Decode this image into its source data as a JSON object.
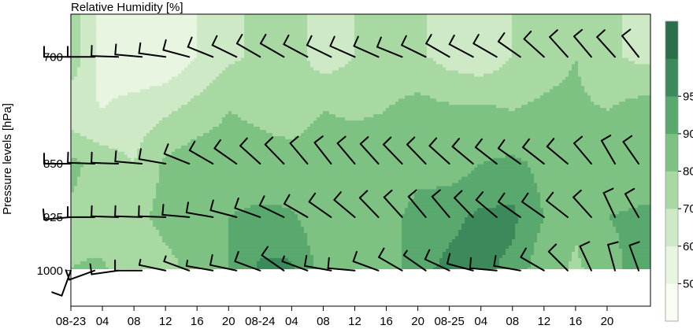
{
  "chart_data": {
    "type": "heatmap",
    "title": "Relative Humidity [%]",
    "xlabel": "",
    "ylabel": "Pressure levels [hPa]",
    "x_tick_labels": [
      "08-23",
      "04",
      "08",
      "12",
      "16",
      "20",
      "08-24",
      "04",
      "08",
      "12",
      "16",
      "20",
      "08-25",
      "04",
      "08",
      "12",
      "16",
      "20"
    ],
    "y_tick_labels": [
      "700",
      "850",
      "925",
      "1000"
    ],
    "pressure_levels": [
      700,
      850,
      925,
      1000
    ],
    "ylim": [
      1050,
      640
    ],
    "colorbar": {
      "labels": [
        "50",
        "60",
        "70",
        "80",
        "90",
        "95"
      ],
      "level_bounds": [
        0,
        50,
        60,
        70,
        80,
        90,
        95,
        100
      ],
      "colors": [
        "#f7fcf5",
        "#e7f5e1",
        "#cde9c6",
        "#a9d9a3",
        "#7ec283",
        "#59a86e",
        "#3c8a5b",
        "#2b6e4a"
      ]
    },
    "x_hours": [
      0,
      4,
      8,
      12,
      16,
      20,
      24,
      28,
      32,
      36,
      40,
      44,
      48,
      52,
      56,
      60,
      64,
      68,
      72
    ],
    "rh": {
      "700": [
        78,
        55,
        50,
        52,
        60,
        68,
        72,
        74,
        65,
        70,
        74,
        72,
        66,
        63,
        70,
        76,
        80,
        72,
        68
      ],
      "775": [
        62,
        60,
        65,
        68,
        74,
        80,
        78,
        74,
        80,
        78,
        80,
        84,
        82,
        82,
        80,
        82,
        82,
        80,
        84
      ],
      "850": [
        83,
        75,
        70,
        82,
        86,
        85,
        84,
        85,
        86,
        88,
        86,
        88,
        87,
        90,
        92,
        88,
        86,
        82,
        82
      ],
      "925": [
        78,
        74,
        76,
        84,
        86,
        90,
        92,
        91,
        86,
        84,
        88,
        92,
        94,
        96,
        96,
        90,
        82,
        90,
        92
      ],
      "1000": [
        80,
        82,
        70,
        76,
        84,
        90,
        96,
        96,
        88,
        84,
        86,
        94,
        96,
        96,
        94,
        86,
        78,
        86,
        94
      ]
    },
    "wind_barb_times": [
      0,
      3,
      6,
      9,
      12,
      15,
      18,
      21,
      24,
      27,
      30,
      33,
      36,
      39,
      42,
      45,
      48,
      51,
      54,
      57,
      60,
      63,
      66,
      69,
      72
    ],
    "wind_direction_deg": {
      "700": [
        270,
        270,
        272,
        275,
        278,
        285,
        292,
        296,
        300,
        300,
        298,
        296,
        294,
        294,
        292,
        296,
        300,
        298,
        300,
        305,
        312,
        318,
        320,
        318,
        322
      ],
      "850": [
        270,
        272,
        272,
        275,
        280,
        292,
        300,
        305,
        312,
        316,
        320,
        322,
        320,
        318,
        316,
        316,
        312,
        310,
        308,
        305,
        308,
        310,
        320,
        330,
        325
      ],
      "925": [
        265,
        270,
        272,
        272,
        272,
        275,
        280,
        285,
        290,
        296,
        300,
        305,
        310,
        316,
        318,
        320,
        320,
        316,
        310,
        305,
        305,
        308,
        318,
        335,
        330
      ],
      "1000": [
        200,
        250,
        262,
        270,
        282,
        290,
        280,
        282,
        290,
        305,
        290,
        280,
        275,
        290,
        300,
        305,
        295,
        285,
        275,
        280,
        300,
        315,
        335,
        345,
        340
      ]
    },
    "wind_speed_kt": {
      "700": [
        10,
        10,
        10,
        10,
        10,
        10,
        10,
        10,
        10,
        10,
        10,
        10,
        10,
        10,
        10,
        10,
        10,
        10,
        10,
        10,
        10,
        10,
        10,
        10,
        10
      ],
      "850": [
        10,
        10,
        10,
        10,
        10,
        10,
        10,
        10,
        10,
        10,
        10,
        10,
        10,
        10,
        10,
        10,
        10,
        10,
        10,
        10,
        10,
        10,
        10,
        10,
        10
      ],
      "925": [
        10,
        10,
        10,
        10,
        10,
        10,
        10,
        10,
        10,
        10,
        10,
        10,
        10,
        10,
        10,
        10,
        10,
        10,
        10,
        10,
        10,
        10,
        10,
        10,
        10
      ],
      "1000": [
        10,
        10,
        10,
        10,
        5,
        5,
        5,
        10,
        10,
        10,
        5,
        10,
        10,
        10,
        10,
        5,
        10,
        10,
        10,
        10,
        10,
        10,
        10,
        10,
        10
      ]
    },
    "grid": false,
    "legend": "colorbar-right"
  }
}
